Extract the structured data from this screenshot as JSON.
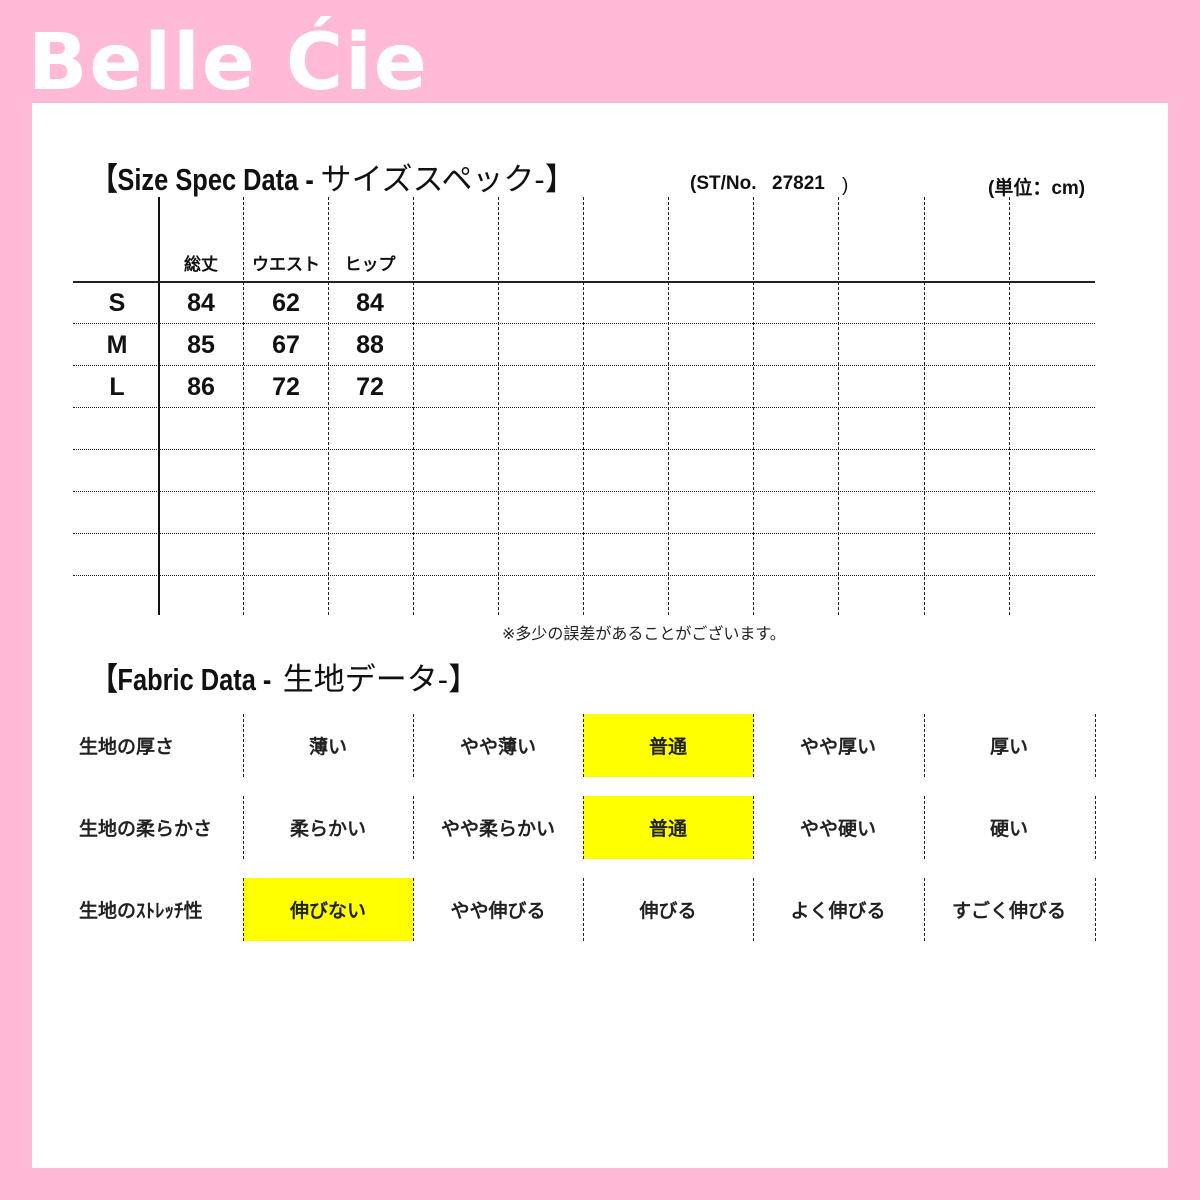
{
  "logo": "Belle Ćie",
  "size_spec": {
    "title_en": "【Size Spec Data -",
    "title_jp": "サイズスペック-】",
    "st_no_label": "(ST/No.",
    "st_no": "27821",
    "st_no_close": ")",
    "unit": "(単位：cm)",
    "columns": [
      "総丈",
      "ウエスト",
      "ヒップ"
    ],
    "rows": [
      {
        "size": "S",
        "values": [
          "84",
          "62",
          "84"
        ]
      },
      {
        "size": "M",
        "values": [
          "85",
          "67",
          "88"
        ]
      },
      {
        "size": "L",
        "values": [
          "86",
          "72",
          "72"
        ]
      }
    ],
    "note": "※多少の誤差があることがございます。"
  },
  "fabric": {
    "title_en": "【Fabric Data -",
    "title_jp": "生地データ-】",
    "highlight_color": "#ffff00",
    "rows": [
      {
        "label": "生地の厚さ",
        "options": [
          "薄い",
          "やや薄い",
          "普通",
          "やや厚い",
          "厚い"
        ],
        "selected": 2
      },
      {
        "label": "生地の柔らかさ",
        "options": [
          "柔らかい",
          "やや柔らかい",
          "普通",
          "やや硬い",
          "硬い"
        ],
        "selected": 2
      },
      {
        "label": "生地のｽﾄﾚｯﾁ性",
        "options": [
          "伸びない",
          "やや伸びる",
          "伸びる",
          "よく伸びる",
          "すごく伸びる"
        ],
        "selected": 0
      }
    ]
  }
}
